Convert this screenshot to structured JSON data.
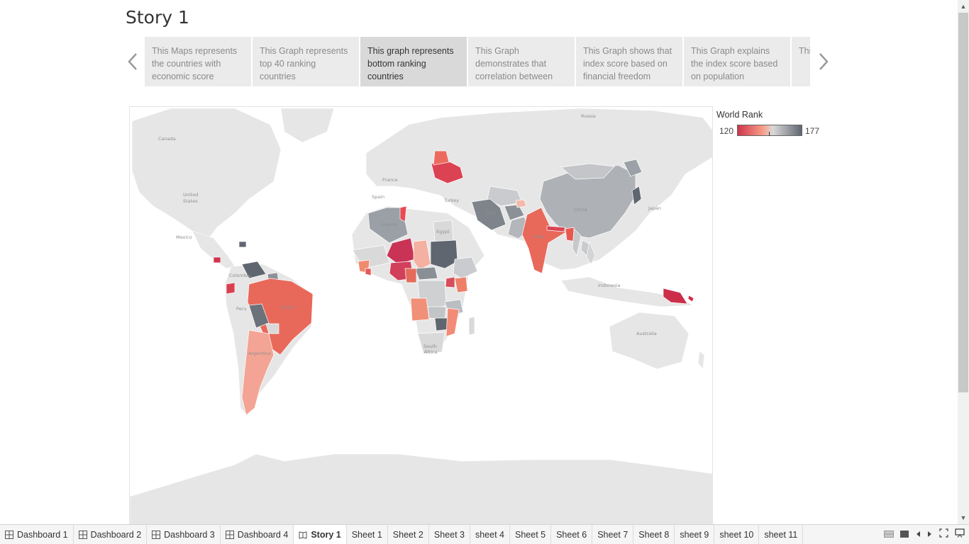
{
  "story": {
    "title": "Story 1"
  },
  "story_points": [
    {
      "text": "This Maps represents the countries with economic score"
    },
    {
      "text": "This Graph represents top 40 ranking countries"
    },
    {
      "text": "This graph represents bottom ranking countries"
    },
    {
      "text": "This Graph demonstrates that correlation between"
    },
    {
      "text": "This Graph shows that index score based on financial freedom"
    },
    {
      "text": "This Graph explains the index score based on population"
    },
    {
      "text": "This the bet"
    }
  ],
  "legend": {
    "title": "World Rank",
    "min": "120",
    "max": "177",
    "colors": [
      "#d0334a",
      "#f7a08a",
      "#d9d9d9",
      "#5f6670"
    ]
  },
  "map": {
    "labels": {
      "russia": "Russia",
      "canada": "Canada",
      "united": "United",
      "states": "States",
      "mexico": "Mexico",
      "france": "France",
      "spain": "Spain",
      "turkey": "Turkey",
      "colombia": "Colombia",
      "peru": "Peru",
      "brazil": "Brazil",
      "argentina": "Argentina",
      "algeria": "Algeria",
      "egypt": "Egypt",
      "india": "India",
      "china": "China",
      "japan": "Japan",
      "indonesia": "Indonesia",
      "australia": "Australia",
      "south": "South",
      "africa": "Africa",
      "iran": "Iran"
    }
  },
  "tabs": [
    {
      "label": "Dashboard 1",
      "icon": "dashboard-icon"
    },
    {
      "label": "Dashboard 2",
      "icon": "dashboard-icon"
    },
    {
      "label": "Dashboard 3",
      "icon": "dashboard-icon"
    },
    {
      "label": "Dashboard 4",
      "icon": "dashboard-icon"
    },
    {
      "label": "Story 1",
      "icon": "story-icon"
    },
    {
      "label": "Sheet 1"
    },
    {
      "label": "Sheet 2"
    },
    {
      "label": "Sheet 3"
    },
    {
      "label": "sheet 4"
    },
    {
      "label": "Sheet 5"
    },
    {
      "label": "Sheet 6"
    },
    {
      "label": "Sheet 7"
    },
    {
      "label": "Sheet 8"
    },
    {
      "label": "sheet 9"
    },
    {
      "label": "sheet 10"
    },
    {
      "label": "sheet 11"
    }
  ]
}
